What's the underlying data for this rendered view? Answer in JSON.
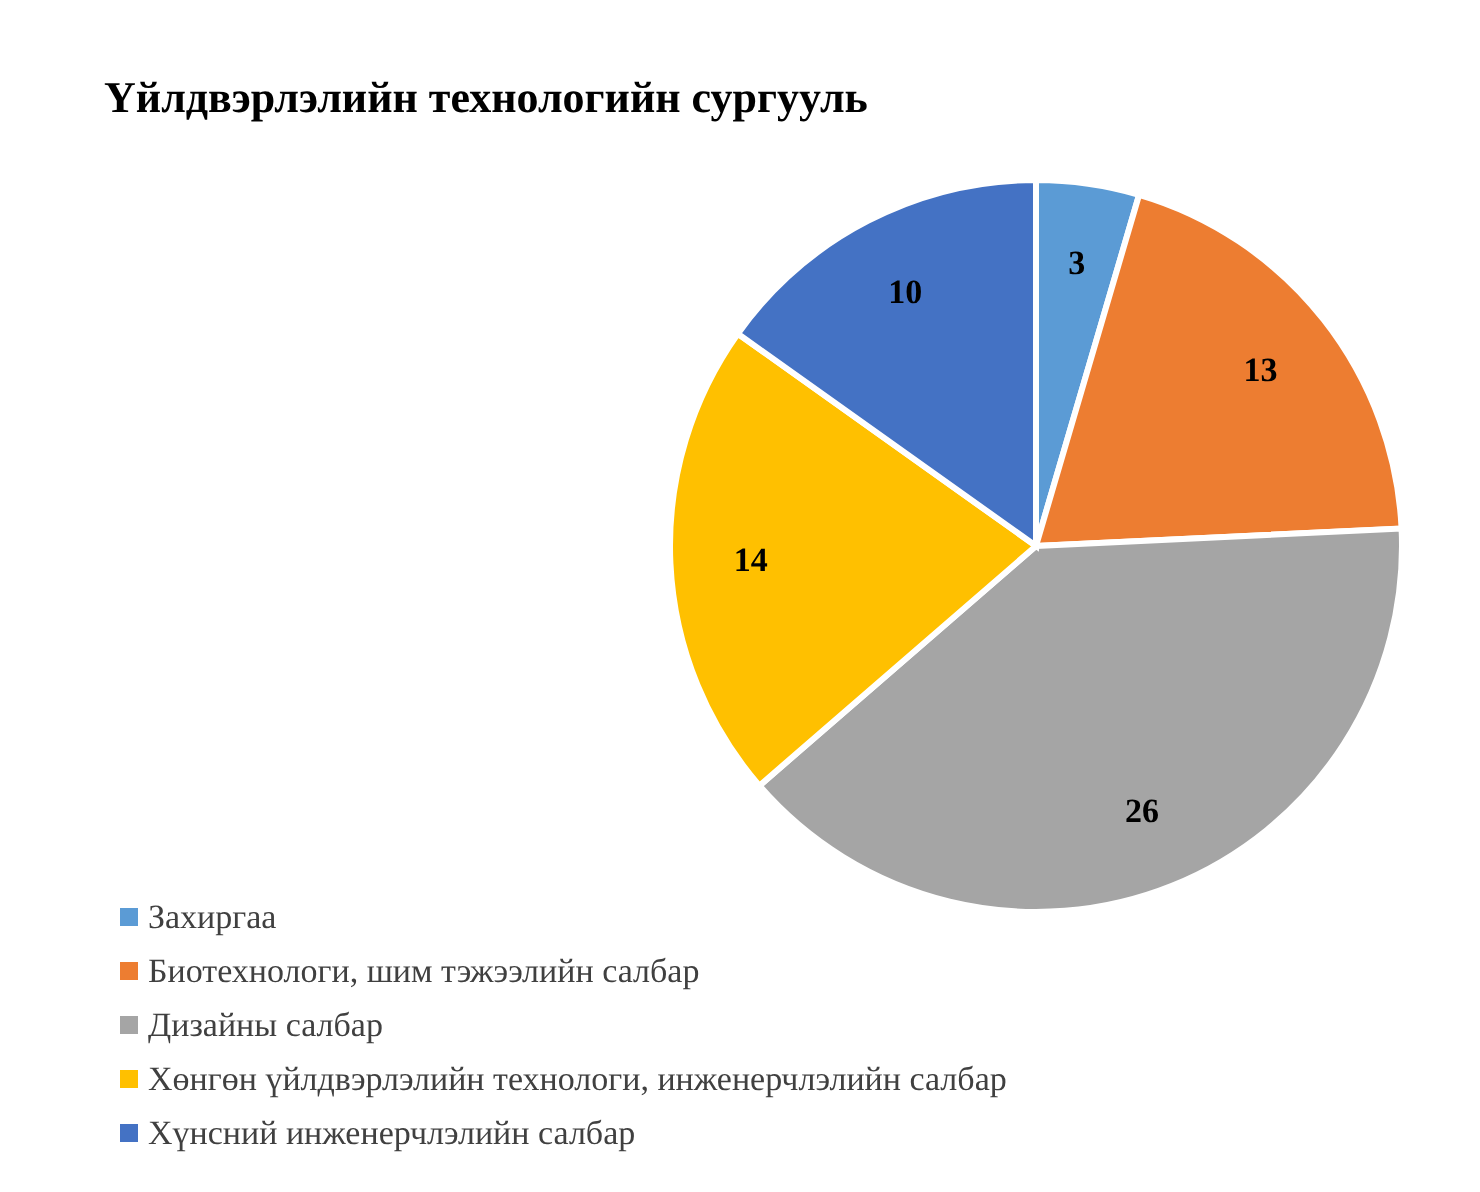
{
  "chart_data": {
    "type": "pie",
    "title": "Үйлдвэрлэлийн технологийн сургууль",
    "categories": [
      "Захиргаа",
      "Биотехнологи, шим тэжээлийн салбар",
      "Дизайны салбар",
      "Хөнгөн үйлдвэрлэлийн технологи, инженерчлэлийн салбар",
      "Хүнсний инженерчлэлийн салбар"
    ],
    "values": [
      3,
      13,
      26,
      14,
      10
    ],
    "colors": [
      "#5b9bd5",
      "#ed7d31",
      "#a5a5a5",
      "#ffc000",
      "#4472c4"
    ],
    "data_labels": true,
    "legend": "bottom left"
  }
}
